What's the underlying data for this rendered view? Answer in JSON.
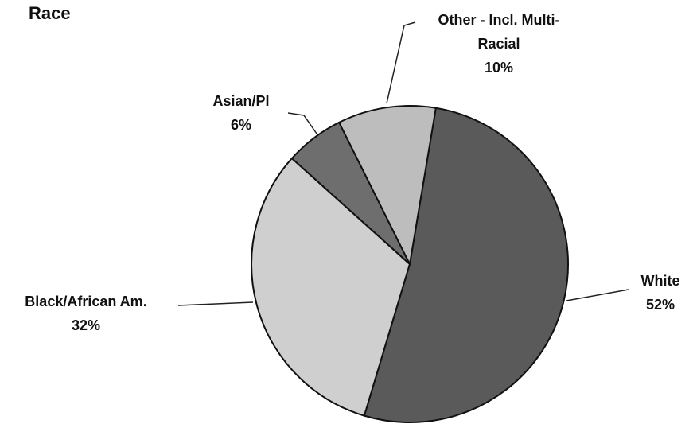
{
  "chart_data": {
    "type": "pie",
    "title": "Race",
    "categories": [
      "White",
      "Black/African Am.",
      "Asian/PI",
      "Other - Incl. Multi-Racial"
    ],
    "values": [
      52,
      32,
      6,
      10
    ],
    "value_labels": [
      "52%",
      "32%",
      "6%",
      "10%"
    ],
    "colors": [
      "#5a5a5a",
      "#cfcfcf",
      "#6e6e6e",
      "#bdbdbd"
    ]
  }
}
